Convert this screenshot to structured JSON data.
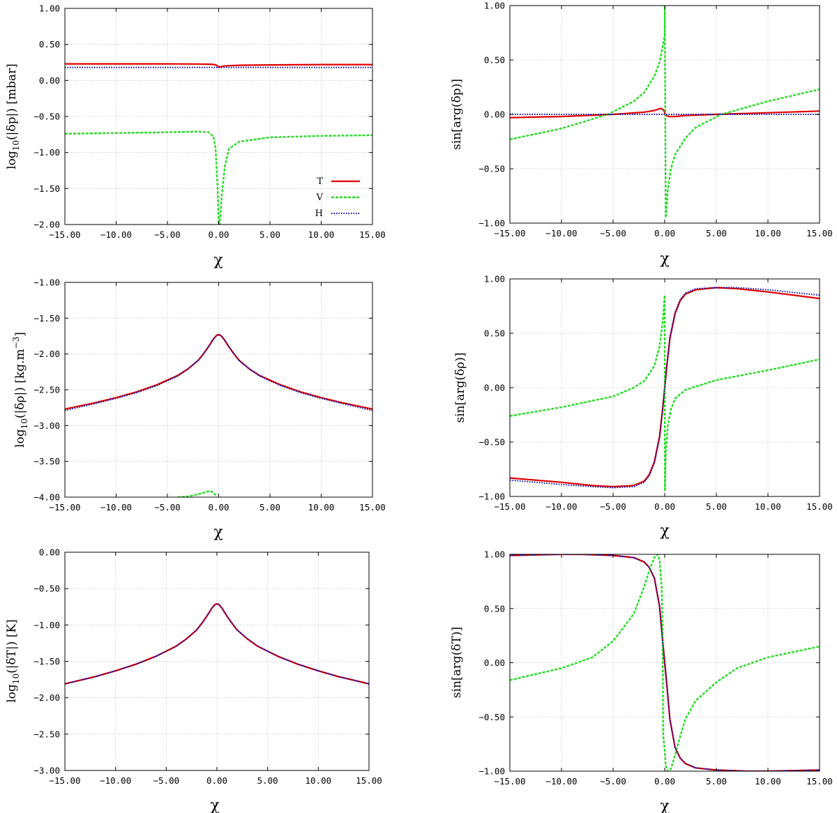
{
  "colors": {
    "T": "#e00000",
    "V": "#22dd22",
    "H": "#0000b0",
    "background": "#ffffff"
  },
  "legend": [
    {
      "key": "T",
      "label": "T",
      "style": "solid"
    },
    {
      "key": "V",
      "label": "V",
      "style": "dashed"
    },
    {
      "key": "H",
      "label": "H",
      "style": "dotted"
    }
  ],
  "chart_data": [
    {
      "id": "abs_dp",
      "type": "line",
      "title": "",
      "xlabel": "χ",
      "ylabel": "log10(|δp|) [mbar]",
      "ylabel_parts": {
        "pre": "log",
        "sub": "10",
        "post": "(|δp|) [mbar]"
      },
      "xlim": [
        -15,
        15
      ],
      "ylim": [
        -2,
        1
      ],
      "xticks": [
        -15,
        -10,
        -5,
        0,
        5,
        10,
        15
      ],
      "xtick_labels": [
        "−15.00",
        "−10.00",
        "−5.00",
        "0.00",
        "5.00",
        "10.00",
        "15.00"
      ],
      "yticks": [
        -2,
        -1.5,
        -1,
        -0.5,
        0,
        0.5,
        1
      ],
      "ytick_labels": [
        "−2.00",
        "−1.50",
        "−1.00",
        "−0.50",
        "0.00",
        "0.50",
        "1.00"
      ],
      "grid": true,
      "legend_position": "bottom-right",
      "series": [
        {
          "name": "T",
          "x": [
            -15,
            -10,
            -5,
            -2,
            -1,
            -0.5,
            -0.2,
            0,
            0.2,
            0.5,
            1,
            2,
            5,
            10,
            15
          ],
          "y": [
            0.23,
            0.23,
            0.23,
            0.228,
            0.225,
            0.222,
            0.21,
            0.185,
            0.19,
            0.2,
            0.205,
            0.21,
            0.215,
            0.22,
            0.22
          ]
        },
        {
          "name": "V",
          "x": [
            -15,
            -10,
            -5,
            -2,
            -1,
            -0.5,
            -0.3,
            -0.1,
            0,
            0.1,
            0.3,
            0.6,
            1,
            2,
            5,
            10,
            15
          ],
          "y": [
            -0.74,
            -0.73,
            -0.72,
            -0.71,
            -0.72,
            -0.78,
            -0.95,
            -1.5,
            -2.0,
            -2.0,
            -1.6,
            -1.2,
            -0.95,
            -0.85,
            -0.79,
            -0.77,
            -0.76
          ]
        },
        {
          "name": "H",
          "x": [
            -15,
            15
          ],
          "y": [
            0.18,
            0.18
          ]
        }
      ]
    },
    {
      "id": "arg_dp",
      "type": "line",
      "title": "",
      "xlabel": "χ",
      "ylabel": "sin[arg(δp)]",
      "xlim": [
        -15,
        15
      ],
      "ylim": [
        -1,
        1
      ],
      "xticks": [
        -15,
        -10,
        -5,
        0,
        5,
        10,
        15
      ],
      "xtick_labels": [
        "−15.00",
        "−10.00",
        "−5.00",
        "0.00",
        "5.00",
        "10.00",
        "15.00"
      ],
      "yticks": [
        -1,
        -0.5,
        0,
        0.5,
        1
      ],
      "ytick_labels": [
        "−1.00",
        "−0.50",
        "0.00",
        "0.50",
        "1.00"
      ],
      "grid": true,
      "series": [
        {
          "name": "T",
          "x": [
            -15,
            -10,
            -5,
            -2,
            -1,
            -0.4,
            -0.1,
            0.1,
            0.4,
            1,
            2,
            5,
            10,
            15
          ],
          "y": [
            -0.03,
            -0.02,
            0.0,
            0.02,
            0.035,
            0.055,
            0.04,
            -0.01,
            -0.02,
            -0.02,
            -0.01,
            0.0,
            0.015,
            0.03
          ]
        },
        {
          "name": "V",
          "x": [
            -15,
            -10,
            -5.5,
            -3,
            -2,
            -1,
            -0.5,
            -0.2,
            0,
            0.01,
            0.1,
            0.3,
            0.6,
            1,
            2,
            3,
            5.5,
            10,
            15
          ],
          "y": [
            -0.23,
            -0.13,
            0.0,
            0.12,
            0.2,
            0.35,
            0.48,
            0.62,
            0.73,
            1.0,
            -0.95,
            -0.7,
            -0.5,
            -0.37,
            -0.22,
            -0.12,
            0.0,
            0.12,
            0.23
          ]
        },
        {
          "name": "H",
          "x": [
            -15,
            15
          ],
          "y": [
            0.0,
            0.0
          ]
        }
      ]
    },
    {
      "id": "abs_drho",
      "type": "line",
      "title": "",
      "xlabel": "χ",
      "ylabel": "log10(|δρ|) [kg.m−3]",
      "ylabel_parts": {
        "pre": "log",
        "sub": "10",
        "post": "(|δρ|) [kg.m",
        "sup": "−3",
        "end": "]"
      },
      "xlim": [
        -15,
        15
      ],
      "ylim": [
        -4,
        -1
      ],
      "xticks": [
        -15,
        -10,
        -5,
        0,
        5,
        10,
        15
      ],
      "xtick_labels": [
        "−15.00",
        "−10.00",
        "−5.00",
        "0.00",
        "5.00",
        "10.00",
        "15.00"
      ],
      "yticks": [
        -4,
        -3.5,
        -3,
        -2.5,
        -2,
        -1.5,
        -1
      ],
      "ytick_labels": [
        "−4.00",
        "−3.50",
        "−3.00",
        "−2.50",
        "−2.00",
        "−1.50",
        "−1.00"
      ],
      "grid": true,
      "series": [
        {
          "name": "T",
          "x": [
            -15,
            -12,
            -10,
            -8,
            -6,
            -4,
            -3,
            -2,
            -1.5,
            -1,
            -0.5,
            -0.2,
            0,
            0.2,
            0.5,
            1,
            1.5,
            2,
            3,
            4,
            6,
            8,
            10,
            12,
            15
          ],
          "y": [
            -2.77,
            -2.68,
            -2.61,
            -2.53,
            -2.43,
            -2.3,
            -2.21,
            -2.09,
            -2.0,
            -1.9,
            -1.79,
            -1.74,
            -1.73,
            -1.74,
            -1.79,
            -1.9,
            -2.0,
            -2.09,
            -2.21,
            -2.3,
            -2.43,
            -2.53,
            -2.61,
            -2.68,
            -2.77
          ]
        },
        {
          "name": "V",
          "x": [
            -4,
            -3,
            -2,
            -1.5,
            -1,
            -0.7,
            -0.5,
            -0.3,
            -0.2
          ],
          "y": [
            -4.0,
            -3.99,
            -3.96,
            -3.94,
            -3.92,
            -3.92,
            -3.94,
            -3.97,
            -4.0
          ]
        },
        {
          "name": "H",
          "x": [
            -15,
            -12,
            -10,
            -8,
            -6,
            -4,
            -3,
            -2,
            -1.5,
            -1,
            -0.5,
            -0.2,
            0,
            0.2,
            0.5,
            1,
            1.5,
            2,
            3,
            4,
            6,
            8,
            10,
            12,
            15
          ],
          "y": [
            -2.79,
            -2.69,
            -2.62,
            -2.54,
            -2.44,
            -2.31,
            -2.21,
            -2.09,
            -2.0,
            -1.9,
            -1.79,
            -1.74,
            -1.73,
            -1.74,
            -1.79,
            -1.9,
            -2.0,
            -2.09,
            -2.21,
            -2.31,
            -2.44,
            -2.54,
            -2.62,
            -2.69,
            -2.79
          ]
        }
      ]
    },
    {
      "id": "arg_drho",
      "type": "line",
      "title": "",
      "xlabel": "χ",
      "ylabel": "sin[arg(δρ)]",
      "xlim": [
        -15,
        15
      ],
      "ylim": [
        -1,
        1
      ],
      "xticks": [
        -15,
        -10,
        -5,
        0,
        5,
        10,
        15
      ],
      "xtick_labels": [
        "−15.00",
        "−10.00",
        "−5.00",
        "0.00",
        "5.00",
        "10.00",
        "15.00"
      ],
      "yticks": [
        -1,
        -0.5,
        0,
        0.5,
        1
      ],
      "ytick_labels": [
        "−1.00",
        "−0.50",
        "0.00",
        "0.50",
        "1.00"
      ],
      "grid": true,
      "series": [
        {
          "name": "T",
          "x": [
            -15,
            -10,
            -7,
            -5,
            -3,
            -2,
            -1.5,
            -1,
            -0.5,
            -0.2,
            0,
            0.2,
            0.5,
            1,
            1.5,
            2,
            3,
            5,
            7,
            10,
            15
          ],
          "y": [
            -0.83,
            -0.87,
            -0.9,
            -0.91,
            -0.9,
            -0.86,
            -0.8,
            -0.68,
            -0.45,
            -0.2,
            0.0,
            0.2,
            0.45,
            0.68,
            0.8,
            0.86,
            0.9,
            0.92,
            0.91,
            0.88,
            0.82
          ]
        },
        {
          "name": "V",
          "x": [
            -15,
            -10,
            -5,
            -3,
            -2,
            -1,
            -0.5,
            -0.2,
            0,
            0.02,
            0.1,
            0.3,
            0.6,
            1,
            2,
            5,
            10,
            15
          ],
          "y": [
            -0.26,
            -0.18,
            -0.08,
            0.0,
            0.06,
            0.2,
            0.38,
            0.6,
            0.85,
            -0.95,
            -0.6,
            -0.35,
            -0.2,
            -0.1,
            -0.02,
            0.07,
            0.16,
            0.26
          ]
        },
        {
          "name": "H",
          "x": [
            -15,
            -10,
            -7,
            -5,
            -3,
            -2,
            -1.5,
            -1,
            -0.5,
            -0.2,
            0,
            0.2,
            0.5,
            1,
            1.5,
            2,
            3,
            5,
            7,
            10,
            15
          ],
          "y": [
            -0.85,
            -0.89,
            -0.91,
            -0.92,
            -0.91,
            -0.87,
            -0.81,
            -0.69,
            -0.46,
            -0.2,
            0.0,
            0.2,
            0.46,
            0.69,
            0.81,
            0.87,
            0.91,
            0.92,
            0.92,
            0.9,
            0.85
          ]
        }
      ]
    },
    {
      "id": "abs_dT",
      "type": "line",
      "title": "",
      "xlabel": "χ",
      "ylabel": "log10(|δT|) [K]",
      "ylabel_parts": {
        "pre": "log",
        "sub": "10",
        "post": "(|δT|) [K]"
      },
      "xlim": [
        -15,
        15
      ],
      "ylim": [
        -3,
        0
      ],
      "xticks": [
        -15,
        -10,
        -5,
        0,
        5,
        10,
        15
      ],
      "xtick_labels": [
        "−15.00",
        "−10.00",
        "−5.00",
        "0.00",
        "5.00",
        "10.00",
        "15.00"
      ],
      "yticks": [
        -3,
        -2.5,
        -2,
        -1.5,
        -1,
        -0.5,
        0
      ],
      "ytick_labels": [
        "−3.00",
        "−2.50",
        "−2.00",
        "−1.50",
        "−1.00",
        "−0.50",
        "0.00"
      ],
      "grid": true,
      "series": [
        {
          "name": "T",
          "x": [
            -15,
            -12,
            -10,
            -8,
            -6,
            -4,
            -3,
            -2,
            -1.5,
            -1,
            -0.5,
            -0.2,
            0,
            0.2,
            0.5,
            1,
            1.5,
            2,
            3,
            4,
            6,
            8,
            10,
            12,
            15
          ],
          "y": [
            -1.81,
            -1.71,
            -1.63,
            -1.54,
            -1.43,
            -1.29,
            -1.19,
            -1.07,
            -0.98,
            -0.88,
            -0.77,
            -0.72,
            -0.71,
            -0.72,
            -0.77,
            -0.88,
            -0.98,
            -1.07,
            -1.19,
            -1.29,
            -1.43,
            -1.54,
            -1.63,
            -1.71,
            -1.81
          ]
        },
        {
          "name": "H",
          "x": [
            -15,
            -12,
            -10,
            -8,
            -6,
            -4,
            -3,
            -2,
            -1.5,
            -1,
            -0.5,
            -0.2,
            0,
            0.2,
            0.5,
            1,
            1.5,
            2,
            3,
            4,
            6,
            8,
            10,
            12,
            15
          ],
          "y": [
            -1.81,
            -1.71,
            -1.63,
            -1.54,
            -1.43,
            -1.29,
            -1.19,
            -1.07,
            -0.98,
            -0.88,
            -0.77,
            -0.72,
            -0.71,
            -0.72,
            -0.77,
            -0.88,
            -0.98,
            -1.07,
            -1.19,
            -1.29,
            -1.43,
            -1.54,
            -1.63,
            -1.71,
            -1.81
          ]
        }
      ]
    },
    {
      "id": "arg_dT",
      "type": "line",
      "title": "",
      "xlabel": "χ",
      "ylabel": "sin[arg(δT)]",
      "xlim": [
        -15,
        15
      ],
      "ylim": [
        -1,
        1
      ],
      "xticks": [
        -15,
        -10,
        -5,
        0,
        5,
        10,
        15
      ],
      "xtick_labels": [
        "−15.00",
        "−10.00",
        "−5.00",
        "0.00",
        "5.00",
        "10.00",
        "15.00"
      ],
      "yticks": [
        -1,
        -0.5,
        0,
        0.5,
        1
      ],
      "ytick_labels": [
        "−1.00",
        "−0.50",
        "0.00",
        "0.50",
        "1.00"
      ],
      "grid": true,
      "series": [
        {
          "name": "T",
          "x": [
            -15,
            -10,
            -8,
            -5,
            -3,
            -2,
            -1.5,
            -1,
            -0.5,
            -0.2,
            0,
            0.2,
            0.5,
            1,
            1.5,
            2,
            3,
            5,
            8,
            10,
            15
          ],
          "y": [
            0.99,
            1.0,
            1.0,
            0.99,
            0.97,
            0.93,
            0.88,
            0.78,
            0.52,
            0.2,
            0.0,
            -0.2,
            -0.52,
            -0.78,
            -0.88,
            -0.93,
            -0.97,
            -0.99,
            -1.0,
            -1.0,
            -0.99
          ]
        },
        {
          "name": "V",
          "x": [
            -15,
            -10,
            -7,
            -5,
            -3,
            -2,
            -1.5,
            -1,
            -0.7,
            -0.5,
            -0.3,
            -0.2,
            -0.15,
            0,
            0.1,
            0.3,
            0.6,
            1,
            1.5,
            2,
            3,
            5,
            7,
            10,
            15
          ],
          "y": [
            -0.16,
            -0.05,
            0.05,
            0.2,
            0.45,
            0.7,
            0.85,
            0.97,
            1.0,
            0.95,
            0.7,
            0.3,
            -0.68,
            -0.8,
            -0.95,
            -1.0,
            -0.98,
            -0.85,
            -0.68,
            -0.52,
            -0.35,
            -0.18,
            -0.05,
            0.05,
            0.15
          ]
        },
        {
          "name": "H",
          "x": [
            -15,
            -10,
            -8,
            -5,
            -3,
            -2,
            -1.5,
            -1,
            -0.5,
            -0.2,
            0,
            0.2,
            0.5,
            1,
            1.5,
            2,
            3,
            5,
            8,
            10,
            15
          ],
          "y": [
            0.99,
            1.0,
            1.0,
            0.99,
            0.97,
            0.93,
            0.88,
            0.78,
            0.52,
            0.2,
            0.0,
            -0.2,
            -0.52,
            -0.78,
            -0.88,
            -0.93,
            -0.97,
            -0.99,
            -1.0,
            -1.0,
            -0.99
          ]
        }
      ]
    }
  ]
}
